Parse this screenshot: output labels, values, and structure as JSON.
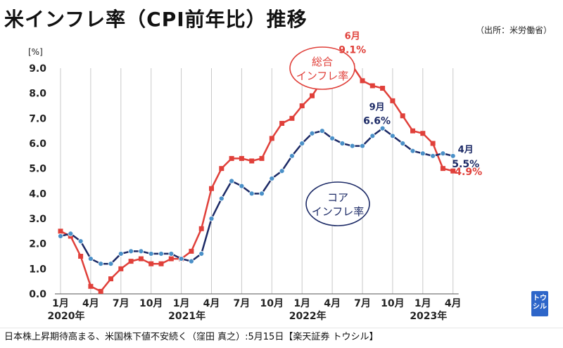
{
  "title": "米インフレ率（CPI前年比）推移",
  "source": "（出所：米労働省）",
  "footer": "日本株上昇期待高まる、米国株下値不安続く（窪田 真之）:5月15日【楽天証券 トウシル】",
  "logo_text": "トウシル",
  "chart_data": {
    "type": "line",
    "y_unit": "[%]",
    "ylim": [
      0,
      9
    ],
    "y_ticks": [
      "0.0",
      "1.0",
      "2.0",
      "3.0",
      "4.0",
      "5.0",
      "6.0",
      "7.0",
      "8.0",
      "9.0"
    ],
    "x": [
      "2020-01",
      "2020-02",
      "2020-03",
      "2020-04",
      "2020-05",
      "2020-06",
      "2020-07",
      "2020-08",
      "2020-09",
      "2020-10",
      "2020-11",
      "2020-12",
      "2021-01",
      "2021-02",
      "2021-03",
      "2021-04",
      "2021-05",
      "2021-06",
      "2021-07",
      "2021-08",
      "2021-09",
      "2021-10",
      "2021-11",
      "2021-12",
      "2022-01",
      "2022-02",
      "2022-03",
      "2022-04",
      "2022-05",
      "2022-06",
      "2022-07",
      "2022-08",
      "2022-09",
      "2022-10",
      "2022-11",
      "2022-12",
      "2023-01",
      "2023-02",
      "2023-03",
      "2023-04"
    ],
    "x_tick_labels": [
      {
        "index": 0,
        "label": "1月",
        "year": "2020年"
      },
      {
        "index": 3,
        "label": "4月"
      },
      {
        "index": 6,
        "label": "7月"
      },
      {
        "index": 9,
        "label": "10月"
      },
      {
        "index": 12,
        "label": "1月",
        "year": "2021年"
      },
      {
        "index": 15,
        "label": "4月"
      },
      {
        "index": 18,
        "label": "7月"
      },
      {
        "index": 21,
        "label": "10月"
      },
      {
        "index": 24,
        "label": "1月",
        "year": "2022年"
      },
      {
        "index": 27,
        "label": "4月"
      },
      {
        "index": 30,
        "label": "7月"
      },
      {
        "index": 33,
        "label": "10月"
      },
      {
        "index": 36,
        "label": "1月",
        "year": "2023年"
      },
      {
        "index": 39,
        "label": "4月"
      }
    ],
    "grid": "vertical",
    "series": [
      {
        "name": "総合インフレ率",
        "label_lines": [
          "総合",
          "インフレ率"
        ],
        "color": "#e0403a",
        "marker": "square",
        "values": [
          2.5,
          2.3,
          1.5,
          0.3,
          0.1,
          0.6,
          1.0,
          1.3,
          1.4,
          1.2,
          1.2,
          1.4,
          1.4,
          1.7,
          2.6,
          4.2,
          5.0,
          5.4,
          5.4,
          5.3,
          5.4,
          6.2,
          6.8,
          7.0,
          7.5,
          7.9,
          8.5,
          8.3,
          8.6,
          9.1,
          8.5,
          8.3,
          8.2,
          7.7,
          7.1,
          6.5,
          6.4,
          6.0,
          5.0,
          4.9
        ]
      },
      {
        "name": "コアインフレ率",
        "label_lines": [
          "コア",
          "インフレ率"
        ],
        "color": "#1c2a66",
        "marker": "circle",
        "marker_color": "#4a90c8",
        "values": [
          2.3,
          2.4,
          2.1,
          1.4,
          1.2,
          1.2,
          1.6,
          1.7,
          1.7,
          1.6,
          1.6,
          1.6,
          1.4,
          1.3,
          1.6,
          3.0,
          3.8,
          4.5,
          4.3,
          4.0,
          4.0,
          4.6,
          4.9,
          5.5,
          6.0,
          6.4,
          6.5,
          6.2,
          6.0,
          5.9,
          5.9,
          6.3,
          6.6,
          6.3,
          6.0,
          5.7,
          5.6,
          5.5,
          5.6,
          5.5
        ]
      }
    ],
    "annotations": [
      {
        "series": 0,
        "index": 29,
        "month": "6月",
        "value": "9.1%"
      },
      {
        "series": 1,
        "index": 32,
        "month": "9月",
        "value": "6.6%"
      },
      {
        "series": 1,
        "index": 39,
        "month": "4月",
        "value": "5.5%"
      },
      {
        "series": 0,
        "index": 39,
        "month": "",
        "value": "4.9%"
      }
    ]
  }
}
